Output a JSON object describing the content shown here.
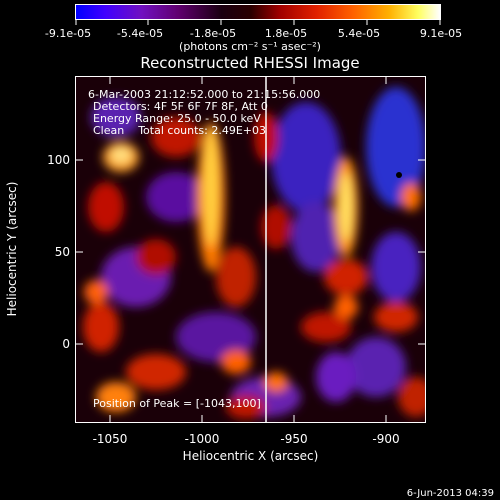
{
  "colorbar": {
    "ticks": [
      "-9.1e-05",
      "-5.4e-05",
      "-1.8e-05",
      "1.8e-05",
      "5.4e-05",
      "9.1e-05"
    ],
    "unit_label": "(photons cm⁻² s⁻¹ asec⁻²)"
  },
  "plot": {
    "title": "Reconstructed RHESSI Image",
    "annotations": {
      "time_range": "6-Mar-2003 21:12:52.000 to 21:15:56.000",
      "detectors": "Detectors: 4F 5F 6F 7F 8F, Att 0",
      "energy_range": "Energy Range: 25.0 - 50.0 keV",
      "clean_counts": "Clean    Total counts: 2.49E+03",
      "peak_position": "Position of Peak = [-1043,100]"
    },
    "xaxis": {
      "label": "Heliocentric X (arcsec)",
      "ticks": [
        "-1050",
        "-1000",
        "-950",
        "-900"
      ]
    },
    "yaxis": {
      "label": "Heliocentric Y (arcsec)",
      "ticks": [
        "100",
        "50",
        "0"
      ]
    }
  },
  "footer": {
    "date": "6-Jun-2013 04:39"
  }
}
